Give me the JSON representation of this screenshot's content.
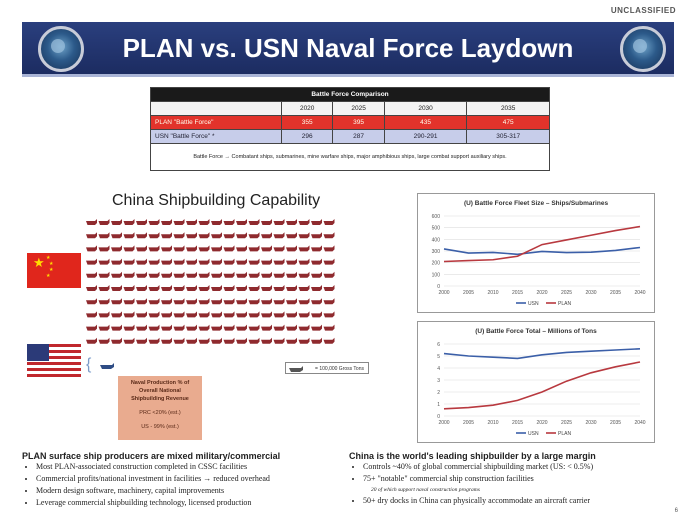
{
  "classification": "UNCLASSIFIED",
  "title": "PLAN vs. USN Naval Force Laydown",
  "table": {
    "header": "Battle Force Comparison",
    "years": [
      "2020",
      "2025",
      "2030",
      "2035"
    ],
    "rows": [
      {
        "label": "PLAN \"Battle Force\"",
        "values": [
          "355",
          "395",
          "435",
          "475"
        ]
      },
      {
        "label": "USN \"Battle Force\" *",
        "values": [
          "296",
          "287",
          "290-291",
          "305-317"
        ]
      }
    ],
    "note": "Battle Force → Combatant ships, submarines, mine warfare ships, major amphibious ships, large combat support auxiliary ships."
  },
  "shipbuilding": {
    "title": "China Shipbuilding Capability",
    "legend": "= 100,000 Gross Tons",
    "production_box": {
      "heading": "Naval Production % of Overall National Shipbuilding Revenue",
      "prc": "PRC <20% (est.)",
      "us": "US - 99% (est.)"
    },
    "china_icon_count": 200,
    "us_icon_count": 1
  },
  "chart_data": [
    {
      "type": "line",
      "title": "(U) Battle Force Fleet Size – Ships/Submarines",
      "x": [
        2000,
        2005,
        2010,
        2015,
        2020,
        2025,
        2030,
        2035,
        2040
      ],
      "ylim": [
        0,
        600
      ],
      "yticks": [
        0,
        100,
        200,
        300,
        400,
        500,
        600
      ],
      "series": [
        {
          "name": "USN",
          "values": [
            318,
            282,
            288,
            272,
            296,
            287,
            290,
            305,
            330
          ],
          "color": "#3b5fa8"
        },
        {
          "name": "PLAN",
          "values": [
            210,
            218,
            225,
            255,
            355,
            395,
            435,
            475,
            510
          ],
          "color": "#b8393f"
        }
      ]
    },
    {
      "type": "line",
      "title": "(U) Battle Force Total – Millions of Tons",
      "x": [
        2000,
        2005,
        2010,
        2015,
        2020,
        2025,
        2030,
        2035,
        2040
      ],
      "ylim": [
        0,
        6
      ],
      "yticks": [
        0,
        1,
        2,
        3,
        4,
        5,
        6
      ],
      "series": [
        {
          "name": "USN",
          "values": [
            5.2,
            5.0,
            4.9,
            4.8,
            5.1,
            5.3,
            5.4,
            5.5,
            5.6
          ],
          "color": "#3b5fa8"
        },
        {
          "name": "PLAN",
          "values": [
            0.6,
            0.7,
            0.9,
            1.3,
            2.0,
            2.9,
            3.6,
            4.1,
            4.5
          ],
          "color": "#b8393f"
        }
      ]
    }
  ],
  "bottom_left": {
    "heading": "PLAN surface ship producers are mixed military/commercial",
    "bullets": [
      "Most PLAN-associated construction completed in CSSC facilities",
      "Commercial profits/national investment in facilities → reduced overhead",
      "Modern design software, machinery, capital improvements",
      "Leverage commercial shipbuilding technology, licensed production"
    ]
  },
  "bottom_right": {
    "heading": "China is the world's leading shipbuilder by a large margin",
    "bullets": [
      "Controls ~40% of global commercial shipbuilding market (US: < 0.5%)",
      "75+ \"notable\" commercial ship construction facilities",
      "50+ dry docks in China can physically accommodate an aircraft carrier"
    ],
    "sub_bullet": "20 of which support naval construction programs"
  },
  "page_number": "6"
}
